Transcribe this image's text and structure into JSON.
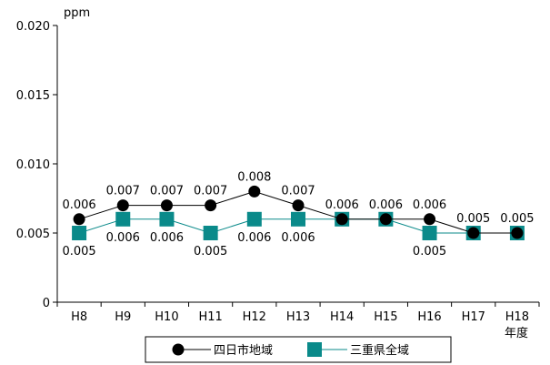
{
  "chart_data": {
    "type": "line",
    "categories": [
      "H8",
      "H9",
      "H10",
      "H11",
      "H12",
      "H13",
      "H14",
      "H15",
      "H16",
      "H17",
      "H18"
    ],
    "x_unit": "年度",
    "y_unit": "ppm",
    "ylim": [
      0,
      0.02
    ],
    "yticks": [
      "0",
      "0.005",
      "0.010",
      "0.015",
      "0.020"
    ],
    "grid": false,
    "legend_position": "bottom",
    "series": [
      {
        "name": "四日市地域",
        "marker": "circle",
        "color": "#000000",
        "values": [
          0.006,
          0.007,
          0.007,
          0.007,
          0.008,
          0.007,
          0.006,
          0.006,
          0.006,
          0.005,
          0.005
        ],
        "labels": [
          "0.006",
          "0.007",
          "0.007",
          "0.007",
          "0.008",
          "0.007",
          "0.006",
          "0.006",
          "0.006",
          "0.005",
          "0.005"
        ]
      },
      {
        "name": "三重県全域",
        "marker": "square",
        "color": "#0a8a8a",
        "values": [
          0.005,
          0.006,
          0.006,
          0.005,
          0.006,
          0.006,
          0.006,
          0.006,
          0.005,
          0.005,
          0.005
        ],
        "labels": [
          "0.005",
          "0.006",
          "0.006",
          "0.005",
          "0.006",
          "0.006",
          "",
          "",
          "0.005",
          "",
          ""
        ]
      }
    ]
  }
}
